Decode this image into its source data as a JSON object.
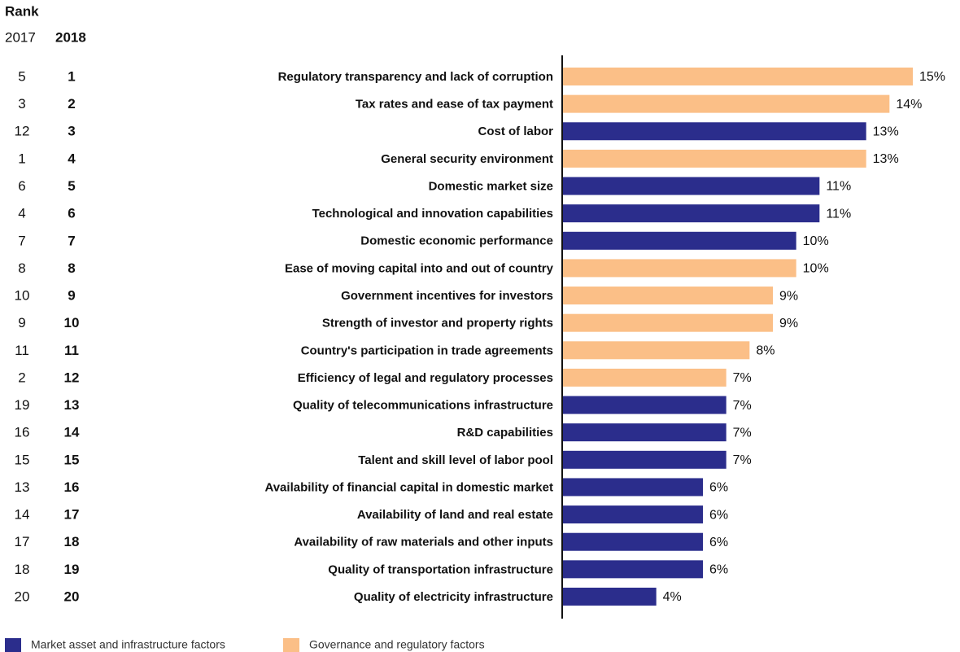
{
  "chart_data": {
    "type": "bar",
    "orientation": "horizontal",
    "rank_title": "Rank",
    "rank_headers": [
      "2017",
      "2018"
    ],
    "categories": [
      "Regulatory transparency and lack of corruption",
      "Tax rates and ease of tax payment",
      "Cost of labor",
      "General security environment",
      "Domestic market size",
      "Technological and innovation capabilities",
      "Domestic economic performance",
      "Ease of moving capital into and out of country",
      "Government incentives for investors",
      "Strength of investor and property rights",
      "Country's participation in trade agreements",
      "Efficiency of legal and regulatory processes",
      "Quality of telecommunications infrastructure",
      "R&D capabilities",
      "Talent and skill level of labor pool",
      "Availability of financial capital in domestic market",
      "Availability of land and real estate",
      "Availability of raw materials and other inputs",
      "Quality of transportation infrastructure",
      "Quality of electricity infrastructure"
    ],
    "values": [
      15,
      14,
      13,
      13,
      11,
      11,
      10,
      10,
      9,
      9,
      8,
      7,
      7,
      7,
      7,
      6,
      6,
      6,
      6,
      4
    ],
    "value_labels": [
      "15%",
      "14%",
      "13%",
      "13%",
      "11%",
      "11%",
      "10%",
      "10%",
      "9%",
      "9%",
      "8%",
      "7%",
      "7%",
      "7%",
      "7%",
      "6%",
      "6%",
      "6%",
      "6%",
      "4%"
    ],
    "rank_2017": [
      5,
      3,
      12,
      1,
      6,
      4,
      7,
      8,
      10,
      9,
      11,
      2,
      19,
      16,
      15,
      13,
      14,
      17,
      18,
      20
    ],
    "rank_2018": [
      1,
      2,
      3,
      4,
      5,
      6,
      7,
      8,
      9,
      10,
      11,
      12,
      13,
      14,
      15,
      16,
      17,
      18,
      19,
      20
    ],
    "groups": [
      {
        "name": "Market asset and infrastructure factors",
        "color": "#2b2d8c"
      },
      {
        "name": "Governance and regulatory factors",
        "color": "#fbbf87"
      }
    ],
    "category_group": [
      1,
      1,
      0,
      1,
      0,
      0,
      0,
      1,
      1,
      1,
      1,
      1,
      0,
      0,
      0,
      0,
      0,
      0,
      0,
      0
    ]
  }
}
